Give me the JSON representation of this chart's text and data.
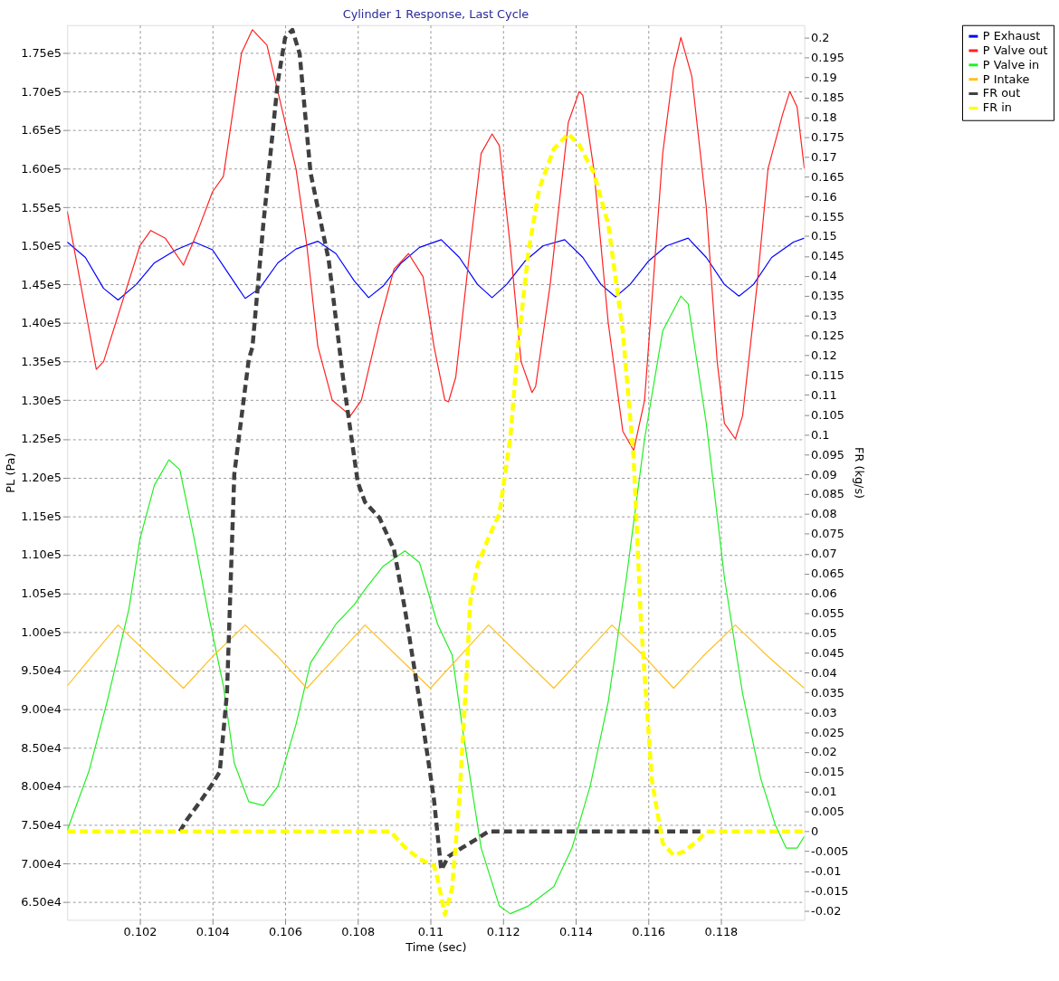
{
  "chart_data": {
    "type": "line",
    "title": "Cylinder 1 Response, Last Cycle",
    "xlabel": "Time (sec)",
    "ylabel": "PL (Pa)",
    "y2label": "FR (kg/s)",
    "xlim": [
      0.1,
      0.1203
    ],
    "xticks": [
      0.102,
      0.104,
      0.106,
      0.108,
      0.11,
      0.112,
      0.114,
      0.116,
      0.118
    ],
    "ylim": [
      62700,
      178600
    ],
    "yticks": [
      {
        "value": 65000,
        "label": "6.50e4"
      },
      {
        "value": 70000,
        "label": "7.00e4"
      },
      {
        "value": 75000,
        "label": "7.50e4"
      },
      {
        "value": 80000,
        "label": "8.00e4"
      },
      {
        "value": 85000,
        "label": "8.50e4"
      },
      {
        "value": 90000,
        "label": "9.00e4"
      },
      {
        "value": 95000,
        "label": "9.50e4"
      },
      {
        "value": 100000,
        "label": "1.00e5"
      },
      {
        "value": 105000,
        "label": "1.05e5"
      },
      {
        "value": 110000,
        "label": "1.10e5"
      },
      {
        "value": 115000,
        "label": "1.15e5"
      },
      {
        "value": 120000,
        "label": "1.20e5"
      },
      {
        "value": 125000,
        "label": "1.25e5"
      },
      {
        "value": 130000,
        "label": "1.30e5"
      },
      {
        "value": 135000,
        "label": "1.35e5"
      },
      {
        "value": 140000,
        "label": "1.40e5"
      },
      {
        "value": 145000,
        "label": "1.45e5"
      },
      {
        "value": 150000,
        "label": "1.50e5"
      },
      {
        "value": 155000,
        "label": "1.55e5"
      },
      {
        "value": 160000,
        "label": "1.60e5"
      },
      {
        "value": 165000,
        "label": "1.65e5"
      },
      {
        "value": 170000,
        "label": "1.70e5"
      },
      {
        "value": 175000,
        "label": "1.75e5"
      }
    ],
    "y2lim": [
      -0.0223,
      0.2032
    ],
    "y2ticks": [
      -0.02,
      -0.015,
      -0.01,
      -0.005,
      0,
      0.005,
      0.01,
      0.015,
      0.02,
      0.025,
      0.03,
      0.035,
      0.04,
      0.045,
      0.05,
      0.055,
      0.06,
      0.065,
      0.07,
      0.075,
      0.08,
      0.085,
      0.09,
      0.095,
      0.1,
      0.105,
      0.11,
      0.115,
      0.12,
      0.125,
      0.13,
      0.135,
      0.14,
      0.145,
      0.15,
      0.155,
      0.16,
      0.165,
      0.17,
      0.175,
      0.18,
      0.185,
      0.19,
      0.195,
      0.2
    ],
    "grid": true,
    "legend": "right",
    "series": [
      {
        "name": "P Exhaust",
        "color": "#0000ff",
        "line_style": "solid",
        "x": [
          0.1,
          0.1005,
          0.101,
          0.1014,
          0.1019,
          0.1024,
          0.103,
          0.1035,
          0.104,
          0.1045,
          0.1049,
          0.1053,
          0.1058,
          0.1063,
          0.1069,
          0.1074,
          0.1079,
          0.1083,
          0.1087,
          0.1092,
          0.1097,
          0.1103,
          0.1108,
          0.1113,
          0.1117,
          0.1121,
          0.1126,
          0.1131,
          0.1137,
          0.1142,
          0.1147,
          0.1151,
          0.1155,
          0.116,
          0.1165,
          0.1171,
          0.1176,
          0.1181,
          0.1185,
          0.1189,
          0.1194,
          0.12,
          0.1203
        ],
        "values": [
          150500,
          148500,
          144500,
          143000,
          145000,
          147800,
          149500,
          150500,
          149500,
          146000,
          143200,
          144500,
          147800,
          149600,
          150600,
          149000,
          145500,
          143300,
          144800,
          147800,
          149800,
          150800,
          148500,
          145000,
          143300,
          145000,
          148000,
          150000,
          150800,
          148500,
          145000,
          143400,
          145000,
          148000,
          150000,
          151000,
          148500,
          145000,
          143500,
          145000,
          148500,
          150500,
          151000
        ]
      },
      {
        "name": "P Valve out",
        "color": "#ff2020",
        "line_style": "solid",
        "x": [
          0.1,
          0.1008,
          0.101,
          0.102,
          0.1023,
          0.1027,
          0.1032,
          0.1036,
          0.104,
          0.1043,
          0.1048,
          0.1051,
          0.1055,
          0.1058,
          0.1063,
          0.1066,
          0.1069,
          0.1073,
          0.1078,
          0.1081,
          0.1086,
          0.109,
          0.1094,
          0.1098,
          0.1101,
          0.1104,
          0.1105,
          0.1107,
          0.1111,
          0.1114,
          0.1117,
          0.1119,
          0.1122,
          0.1125,
          0.1128,
          0.1129,
          0.1133,
          0.1138,
          0.1141,
          0.1142,
          0.1145,
          0.1149,
          0.1153,
          0.1156,
          0.1159,
          0.1164,
          0.1167,
          0.1169,
          0.1172,
          0.1176,
          0.1179,
          0.1181,
          0.1184,
          0.1186,
          0.119,
          0.1193,
          0.1197,
          0.1199,
          0.1201,
          0.1203
        ],
        "values": [
          154500,
          134000,
          135000,
          150000,
          152000,
          151000,
          147500,
          152000,
          157000,
          159000,
          175000,
          178000,
          176000,
          170000,
          160000,
          150000,
          137000,
          130000,
          128000,
          130000,
          140000,
          147000,
          149000,
          146000,
          137000,
          130000,
          129800,
          133000,
          150000,
          162000,
          164500,
          163000,
          150000,
          135000,
          131000,
          131800,
          145000,
          166000,
          170000,
          169500,
          160000,
          140000,
          126000,
          123500,
          130000,
          162000,
          173000,
          177000,
          172000,
          155000,
          135000,
          127000,
          125000,
          128000,
          145000,
          160000,
          167000,
          170000,
          168000,
          160000
        ]
      },
      {
        "name": "P Valve in",
        "color": "#22ee22",
        "line_style": "solid",
        "x": [
          0.1,
          0.1006,
          0.1011,
          0.1017,
          0.102,
          0.1024,
          0.1028,
          0.1031,
          0.1035,
          0.1039,
          0.1043,
          0.1046,
          0.105,
          0.1054,
          0.1058,
          0.1063,
          0.1067,
          0.1074,
          0.1079,
          0.1082,
          0.1087,
          0.1093,
          0.1097,
          0.1102,
          0.1106,
          0.1109,
          0.1114,
          0.1119,
          0.1122,
          0.1127,
          0.1134,
          0.1139,
          0.1144,
          0.1149,
          0.1154,
          0.1159,
          0.1164,
          0.1169,
          0.1171,
          0.1176,
          0.1181,
          0.1186,
          0.1191,
          0.1195,
          0.1198,
          0.1201,
          0.1203
        ],
        "values": [
          74300,
          82000,
          91000,
          103000,
          112000,
          119000,
          122300,
          121000,
          112000,
          102000,
          93000,
          83000,
          78000,
          77500,
          80000,
          88000,
          96000,
          101000,
          103500,
          105500,
          108500,
          110500,
          109000,
          101000,
          97000,
          87000,
          72000,
          64500,
          63500,
          64500,
          67000,
          72000,
          80000,
          91000,
          107000,
          125000,
          139000,
          143500,
          142500,
          127000,
          107000,
          92000,
          81000,
          75000,
          72000,
          72000,
          73500
        ]
      },
      {
        "name": "P Intake",
        "color": "#ffc020",
        "line_style": "solid",
        "x": [
          0.1,
          0.1007,
          0.1014,
          0.1023,
          0.1032,
          0.104,
          0.1049,
          0.1058,
          0.1066,
          0.1074,
          0.1082,
          0.1091,
          0.11,
          0.1108,
          0.1116,
          0.1125,
          0.1134,
          0.1142,
          0.115,
          0.1159,
          0.1167,
          0.1175,
          0.1184,
          0.1193,
          0.1203
        ],
        "values": [
          93000,
          97000,
          100900,
          96800,
          92700,
          96800,
          100900,
          96800,
          92700,
          96800,
          100900,
          96800,
          92700,
          96800,
          100900,
          96800,
          92700,
          96800,
          100900,
          96800,
          92700,
          96800,
          100900,
          96800,
          92700
        ]
      },
      {
        "name": "FR out",
        "color": "#404040",
        "line_style": "dashed",
        "axis": "y2",
        "x": [
          0.1031,
          0.1033,
          0.1037,
          0.104,
          0.1042,
          0.1044,
          0.1046,
          0.105,
          0.1051,
          0.1054,
          0.1058,
          0.106,
          0.1062,
          0.1064,
          0.1067,
          0.1072,
          0.1076,
          0.108,
          0.1082,
          0.1086,
          0.109,
          0.1093,
          0.1097,
          0.1101,
          0.1103,
          0.1105,
          0.1109,
          0.1113,
          0.1116,
          0.1175
        ],
        "values": [
          0,
          0.003,
          0.008,
          0.012,
          0.015,
          0.035,
          0.09,
          0.119,
          0.122,
          0.153,
          0.189,
          0.2,
          0.202,
          0.196,
          0.166,
          0.144,
          0.114,
          0.088,
          0.083,
          0.079,
          0.071,
          0.056,
          0.033,
          0.008,
          -0.0097,
          -0.0063,
          -0.004,
          -0.0018,
          0,
          0
        ]
      },
      {
        "name": "FR in",
        "color": "#ffff00",
        "line_style": "dashed",
        "axis": "y2",
        "x": [
          0.1,
          0.1089,
          0.1093,
          0.1097,
          0.1101,
          0.1102,
          0.1104,
          0.1106,
          0.1108,
          0.111,
          0.1111,
          0.1113,
          0.1116,
          0.1119,
          0.1122,
          0.1124,
          0.1127,
          0.113,
          0.1134,
          0.1138,
          0.1141,
          0.1145,
          0.1149,
          0.1153,
          0.1156,
          0.1158,
          0.1161,
          0.1164,
          0.1167,
          0.117,
          0.1174,
          0.1176,
          0.1203
        ],
        "values": [
          0,
          0,
          -0.004,
          -0.007,
          -0.0086,
          -0.012,
          -0.021,
          -0.0143,
          0.0084,
          0.04,
          0.058,
          0.067,
          0.074,
          0.08,
          0.099,
          0.121,
          0.146,
          0.162,
          0.172,
          0.1758,
          0.173,
          0.166,
          0.153,
          0.126,
          0.094,
          0.053,
          0.013,
          -0.003,
          -0.006,
          -0.005,
          -0.002,
          0,
          0
        ]
      }
    ]
  }
}
